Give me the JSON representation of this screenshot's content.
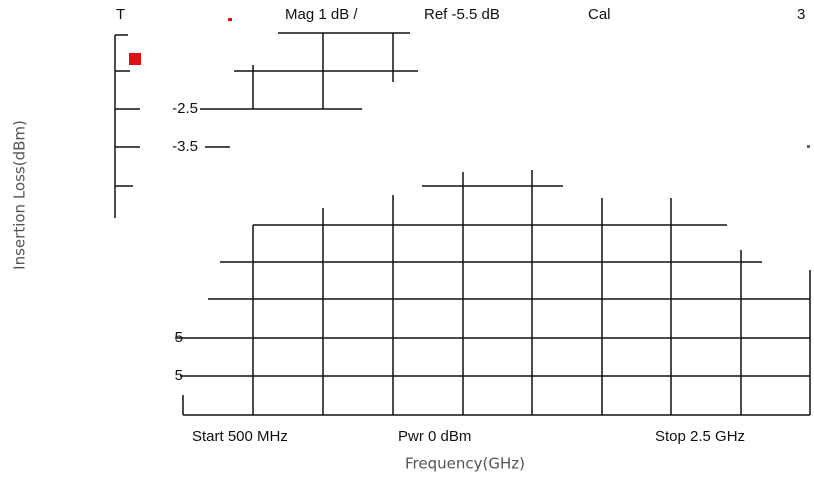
{
  "screen": {
    "header": {
      "channel": "T",
      "scale": "Mag  1 dB /",
      "reference": "Ref -5.5 dB",
      "cal": "Cal",
      "marker": "3"
    },
    "y_labels": [
      "-2.5",
      "-3.5",
      "5",
      "5"
    ],
    "footer": {
      "start": "Start  500 MHz",
      "power": "Pwr  0 dBm",
      "stop": "Stop  2.5 GHz"
    },
    "x_axis_label": "Frequency(GHz)",
    "y_axis_label": "Insertion Loss(dBm)"
  }
}
